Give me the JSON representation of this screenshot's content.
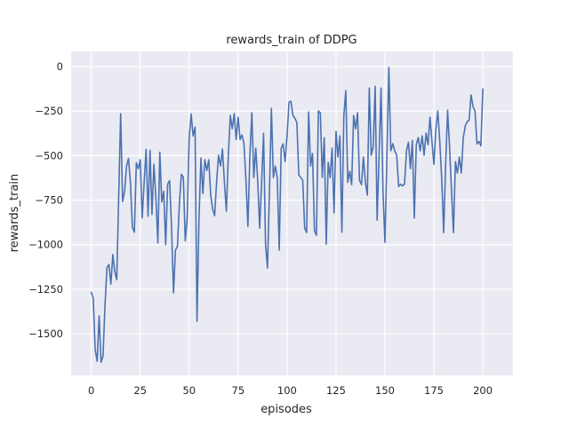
{
  "figure": {
    "background": "#FFFFFF"
  },
  "chart_data": {
    "type": "line",
    "title": "rewards_train of DDPG",
    "xlabel": "episodes",
    "ylabel": "rewards_train",
    "x_ticks": [
      0,
      25,
      50,
      75,
      100,
      125,
      150,
      175,
      200
    ],
    "y_ticks": [
      0,
      -250,
      -500,
      -750,
      -1000,
      -1250,
      -1500
    ],
    "xlim": [
      -10.3,
      215.4
    ],
    "ylim": [
      -1734,
      85
    ],
    "grid": true,
    "legend": "none",
    "plot_background": "#EAEAF2",
    "grid_color": "#FFFFFF",
    "text_color": "#262626",
    "series": [
      {
        "name": "rewards_train",
        "color": "#4C72B0",
        "x_start": 0,
        "x_step": 1,
        "values": [
          -1268,
          -1300,
          -1590,
          -1655,
          -1400,
          -1660,
          -1625,
          -1340,
          -1130,
          -1111,
          -1221,
          -1056,
          -1150,
          -1196,
          -730,
          -264,
          -757,
          -700,
          -560,
          -515,
          -650,
          -900,
          -930,
          -540,
          -573,
          -523,
          -850,
          -650,
          -465,
          -840,
          -470,
          -830,
          -548,
          -738,
          -990,
          -480,
          -760,
          -700,
          -1000,
          -660,
          -640,
          -905,
          -1271,
          -1030,
          -1010,
          -770,
          -605,
          -620,
          -978,
          -850,
          -400,
          -266,
          -389,
          -340,
          -1430,
          -860,
          -513,
          -713,
          -523,
          -583,
          -523,
          -722,
          -800,
          -837,
          -650,
          -498,
          -558,
          -463,
          -650,
          -812,
          -500,
          -274,
          -349,
          -264,
          -409,
          -285,
          -409,
          -384,
          -434,
          -638,
          -897,
          -500,
          -259,
          -623,
          -458,
          -638,
          -907,
          -650,
          -374,
          -997,
          -1131,
          -700,
          -234,
          -623,
          -558,
          -623,
          -1030,
          -458,
          -434,
          -533,
          -389,
          -199,
          -195,
          -274,
          -290,
          -314,
          -608,
          -623,
          -638,
          -907,
          -932,
          -254,
          -558,
          -488,
          -922,
          -947,
          -249,
          -260,
          -623,
          -399,
          -997,
          -538,
          -623,
          -458,
          -822,
          -364,
          -508,
          -389,
          -930,
          -274,
          -135,
          -650,
          -588,
          -663,
          -274,
          -349,
          -259,
          -638,
          -663,
          -508,
          -650,
          -722,
          -120,
          -498,
          -450,
          -110,
          -862,
          -500,
          -120,
          -700,
          -987,
          -500,
          -5,
          -473,
          -433,
          -473,
          -498,
          -673,
          -660,
          -670,
          -660,
          -473,
          -424,
          -573,
          -414,
          -850,
          -438,
          -398,
          -473,
          -389,
          -498,
          -374,
          -438,
          -284,
          -420,
          -548,
          -350,
          -249,
          -420,
          -630,
          -932,
          -548,
          -245,
          -450,
          -700,
          -932,
          -533,
          -598,
          -508,
          -598,
          -400,
          -334,
          -310,
          -300,
          -159,
          -225,
          -250,
          -434,
          -420,
          -445,
          -125
        ]
      }
    ]
  }
}
